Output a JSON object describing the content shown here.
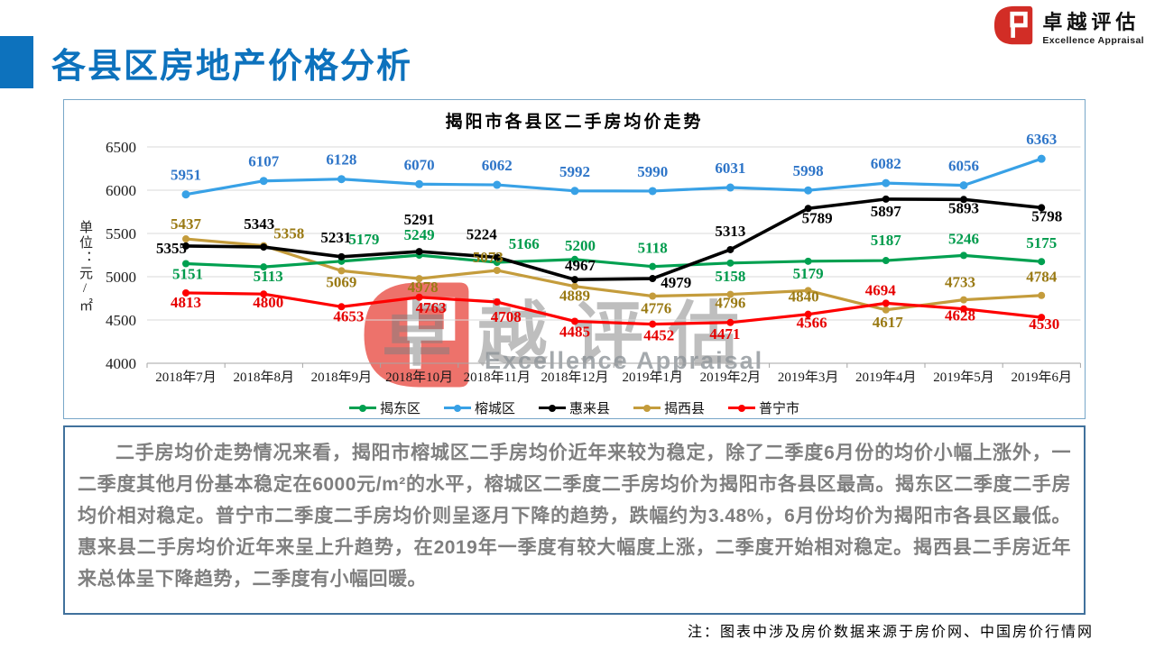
{
  "page": {
    "title": "各县区房地产价格分析"
  },
  "logo": {
    "name": "卓越评估",
    "subtitle": "Excellence Appraisal"
  },
  "watermark": {
    "text": "卓越评估",
    "subtext": "Excellence Appraisal"
  },
  "chart_data": {
    "type": "line",
    "title": "揭阳市各县区二手房均价走势",
    "ylabel": "单位：元/㎡",
    "ylim": [
      4000,
      6500
    ],
    "ytick_step": 500,
    "grid": true,
    "legend_position": "bottom",
    "categories": [
      "2018年7月",
      "2018年8月",
      "2018年9月",
      "2018年10月",
      "2018年11月",
      "2018年12月",
      "2019年1月",
      "2019年2月",
      "2019年3月",
      "2019年4月",
      "2019年5月",
      "2019年6月"
    ],
    "series": [
      {
        "name": "揭东区",
        "color": "#00A050",
        "label_color": "#009B4C",
        "values": [
          5151,
          5113,
          5179,
          5249,
          5166,
          5200,
          5118,
          5158,
          5179,
          5187,
          5246,
          5175
        ]
      },
      {
        "name": "榕城区",
        "color": "#38A1E6",
        "label_color": "#2E75C8",
        "values": [
          5951,
          6107,
          6128,
          6070,
          6062,
          5992,
          5990,
          6031,
          5998,
          6082,
          6056,
          6363
        ]
      },
      {
        "name": "惠来县",
        "color": "#000000",
        "label_color": "#000000",
        "values": [
          5355,
          5343,
          5231,
          5291,
          5224,
          4967,
          4979,
          5313,
          5789,
          5897,
          5893,
          5798
        ]
      },
      {
        "name": "揭西县",
        "color": "#C49C3C",
        "label_color": "#9A7A14",
        "values": [
          5437,
          5358,
          5069,
          4978,
          5073,
          4889,
          4776,
          4796,
          4840,
          4617,
          4733,
          4784
        ]
      },
      {
        "name": "普宁市",
        "color": "#FE0000",
        "label_color": "#E60000",
        "values": [
          4813,
          4800,
          4653,
          4763,
          4708,
          4485,
          4452,
          4471,
          4566,
          4694,
          4628,
          4530
        ]
      }
    ]
  },
  "analysis": {
    "paragraph": "二手房均价走势情况来看，揭阳市榕城区二手房均价近年来较为稳定，除了二季度6月份的均价小幅上涨外，一二季度其他月份基本稳定在6000元/m²的水平，榕城区二季度二手房均价为揭阳市各县区最高。揭东区二季度二手房均价相对稳定。普宁市二季度二手房均价则呈逐月下降的趋势，跌幅约为3.48%，6月份均价为揭阳市各县区最低。惠来县二手房均价近年来呈上升趋势，在2019年一季度有较大幅度上涨，二季度开始相对稳定。揭西县二手房近年来总体呈下降趋势，二季度有小幅回暖。"
  },
  "footnote": "注：图表中涉及房价数据来源于房价网、中国房价行情网"
}
